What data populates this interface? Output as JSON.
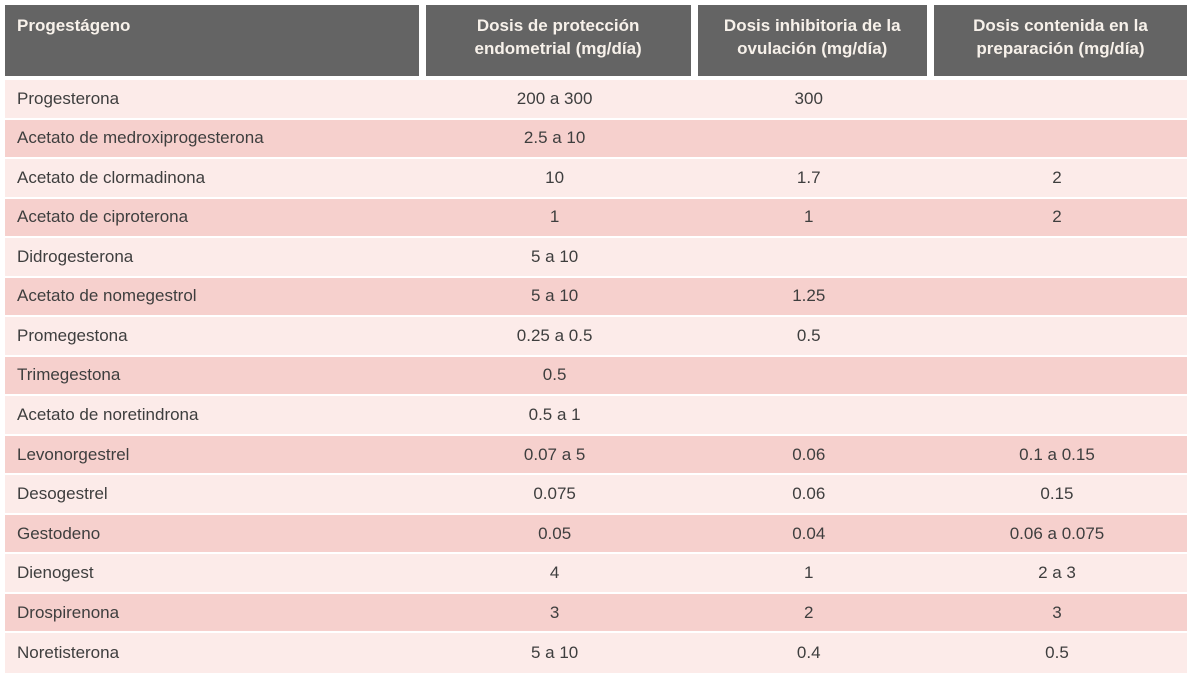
{
  "chart_data": {
    "type": "table",
    "columns": [
      "Progestágeno",
      "Dosis de protección endometrial (mg/día)",
      "Dosis inhibitoria de la ovulación (mg/día)",
      "Dosis contenida en la preparación (mg/día)"
    ],
    "rows": [
      [
        "Progesterona",
        "200 a 300",
        "300",
        ""
      ],
      [
        "Acetato de medroxiprogesterona",
        "2.5 a 10",
        "",
        ""
      ],
      [
        "Acetato de clormadinona",
        "10",
        "1.7",
        "2"
      ],
      [
        "Acetato de ciproterona",
        "1",
        "1",
        "2"
      ],
      [
        "Didrogesterona",
        "5 a 10",
        "",
        ""
      ],
      [
        "Acetato de nomegestrol",
        "5 a 10",
        "1.25",
        ""
      ],
      [
        "Promegestona",
        "0.25 a 0.5",
        "0.5",
        ""
      ],
      [
        "Trimegestona",
        "0.5",
        "",
        ""
      ],
      [
        "Acetato de noretindrona",
        "0.5 a 1",
        "",
        ""
      ],
      [
        "Levonorgestrel",
        "0.07 a 5",
        "0.06",
        "0.1 a 0.15"
      ],
      [
        "Desogestrel",
        "0.075",
        "0.06",
        "0.15"
      ],
      [
        "Gestodeno",
        "0.05",
        "0.04",
        "0.06 a 0.075"
      ],
      [
        "Dienogest",
        "4",
        "1",
        "2 a 3"
      ],
      [
        "Drospirenona",
        "3",
        "2",
        "3"
      ],
      [
        "Noretisterona",
        "5 a 10",
        "0.4",
        "0.5"
      ]
    ],
    "layout": {
      "column_widths_percent": [
        35,
        23,
        20,
        22
      ],
      "row_striping": "alternating, first row light"
    }
  },
  "colors": {
    "header_bg": "#646464",
    "header_text": "#f7f1ea",
    "row_light": "#fcebe9",
    "row_dark": "#f6d0cd",
    "body_text": "#3e3e3e",
    "separator": "#ffffff"
  }
}
